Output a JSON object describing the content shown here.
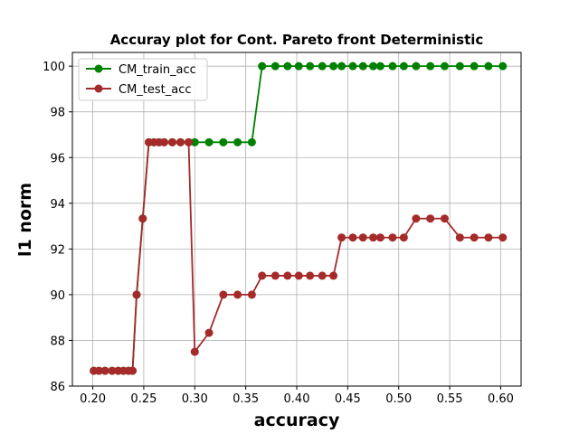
{
  "chart_data": {
    "type": "line",
    "title": "Accuray plot for Cont. Pareto front Deterministic",
    "xlabel": "accuracy",
    "ylabel": "l1 norm",
    "xlim": [
      0.18,
      0.62
    ],
    "ylim": [
      86,
      100.6
    ],
    "xticks": [
      "0.20",
      "0.25",
      "0.30",
      "0.35",
      "0.40",
      "0.45",
      "0.50",
      "0.55",
      "0.60"
    ],
    "yticks": [
      "86",
      "88",
      "90",
      "92",
      "94",
      "96",
      "98",
      "100"
    ],
    "grid": true,
    "legend_position": "top-left",
    "series": [
      {
        "name": "CM_train_acc",
        "color": "#008000",
        "marker": "circle",
        "points": [
          [
            0.201,
            86.67
          ],
          [
            0.206,
            86.67
          ],
          [
            0.212,
            86.67
          ],
          [
            0.219,
            86.67
          ],
          [
            0.225,
            86.67
          ],
          [
            0.23,
            86.67
          ],
          [
            0.235,
            86.67
          ],
          [
            0.239,
            86.67
          ],
          [
            0.243,
            90.0
          ],
          [
            0.249,
            93.33
          ],
          [
            0.255,
            96.67
          ],
          [
            0.26,
            96.67
          ],
          [
            0.265,
            96.67
          ],
          [
            0.27,
            96.67
          ],
          [
            0.278,
            96.67
          ],
          [
            0.286,
            96.67
          ],
          [
            0.294,
            96.67
          ],
          [
            0.3,
            96.67
          ],
          [
            0.314,
            96.67
          ],
          [
            0.328,
            96.67
          ],
          [
            0.342,
            96.67
          ],
          [
            0.356,
            96.67
          ],
          [
            0.366,
            100
          ],
          [
            0.379,
            100
          ],
          [
            0.391,
            100
          ],
          [
            0.402,
            100
          ],
          [
            0.413,
            100
          ],
          [
            0.425,
            100
          ],
          [
            0.436,
            100
          ],
          [
            0.444,
            100
          ],
          [
            0.455,
            100
          ],
          [
            0.465,
            100
          ],
          [
            0.475,
            100
          ],
          [
            0.482,
            100
          ],
          [
            0.494,
            100
          ],
          [
            0.505,
            100
          ],
          [
            0.517,
            100
          ],
          [
            0.531,
            100
          ],
          [
            0.545,
            100
          ],
          [
            0.56,
            100
          ],
          [
            0.574,
            100
          ],
          [
            0.588,
            100
          ],
          [
            0.602,
            100
          ]
        ]
      },
      {
        "name": "CM_test_acc",
        "color": "#a52a2a",
        "marker": "circle",
        "points": [
          [
            0.201,
            86.67
          ],
          [
            0.206,
            86.67
          ],
          [
            0.212,
            86.67
          ],
          [
            0.219,
            86.67
          ],
          [
            0.225,
            86.67
          ],
          [
            0.23,
            86.67
          ],
          [
            0.235,
            86.67
          ],
          [
            0.239,
            86.67
          ],
          [
            0.243,
            90.0
          ],
          [
            0.249,
            93.33
          ],
          [
            0.255,
            96.67
          ],
          [
            0.26,
            96.67
          ],
          [
            0.265,
            96.67
          ],
          [
            0.27,
            96.67
          ],
          [
            0.278,
            96.67
          ],
          [
            0.286,
            96.67
          ],
          [
            0.294,
            96.67
          ],
          [
            0.3,
            87.5
          ],
          [
            0.314,
            88.33
          ],
          [
            0.328,
            90.0
          ],
          [
            0.342,
            90.0
          ],
          [
            0.356,
            90.0
          ],
          [
            0.366,
            90.83
          ],
          [
            0.379,
            90.83
          ],
          [
            0.391,
            90.83
          ],
          [
            0.402,
            90.83
          ],
          [
            0.413,
            90.83
          ],
          [
            0.425,
            90.83
          ],
          [
            0.436,
            90.83
          ],
          [
            0.444,
            92.5
          ],
          [
            0.455,
            92.5
          ],
          [
            0.465,
            92.5
          ],
          [
            0.475,
            92.5
          ],
          [
            0.482,
            92.5
          ],
          [
            0.494,
            92.5
          ],
          [
            0.505,
            92.5
          ],
          [
            0.517,
            93.33
          ],
          [
            0.531,
            93.33
          ],
          [
            0.545,
            93.33
          ],
          [
            0.56,
            92.5
          ],
          [
            0.574,
            92.5
          ],
          [
            0.588,
            92.5
          ],
          [
            0.602,
            92.5
          ]
        ]
      }
    ]
  }
}
